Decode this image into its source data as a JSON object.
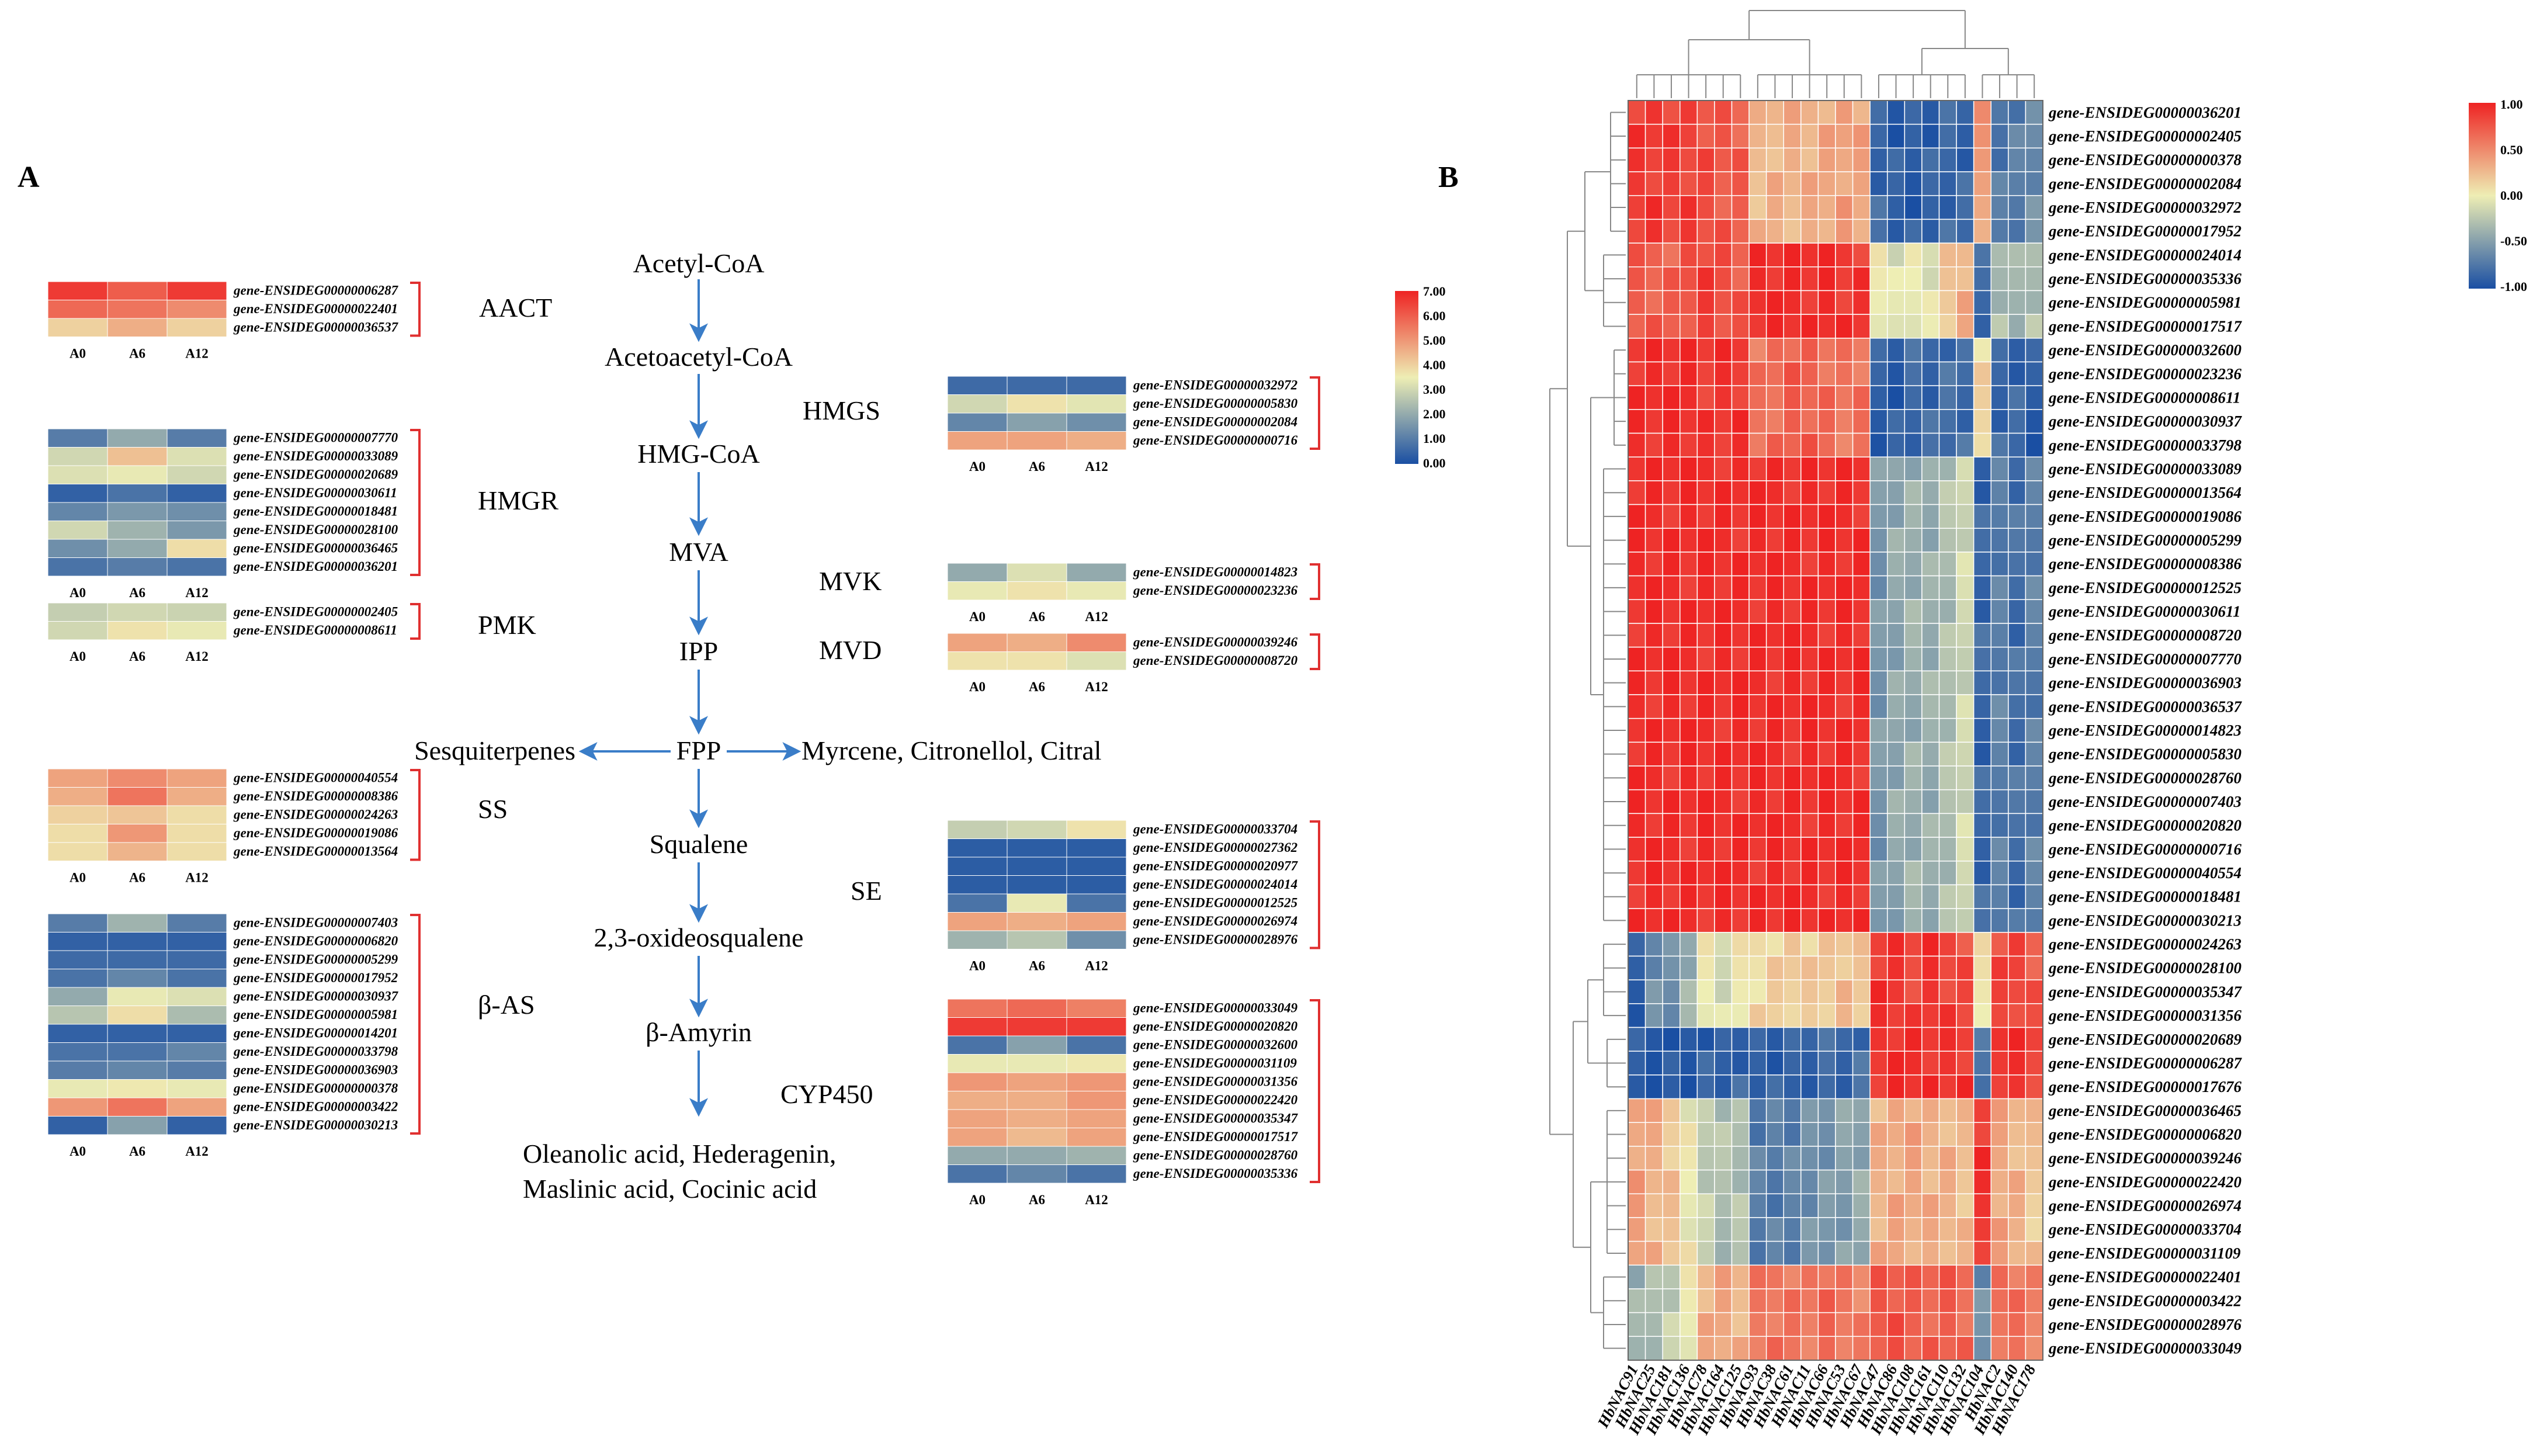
{
  "panels": {
    "a": "A",
    "b": "B"
  },
  "colors": {
    "low": "#1a4fa3",
    "mid": "#eeeeb4",
    "high": "#ee2323",
    "arrow": "#3a7dc8",
    "bracket": "#e03030"
  },
  "pathway": {
    "steps": [
      "Acetyl-CoA",
      "Acetoacetyl-CoA",
      "HMG-CoA",
      "MVA",
      "IPP",
      "FPP",
      "Squalene",
      "2,3-oxideosqualene",
      "β-Amyrin"
    ],
    "branch_left": "Sesquiterpenes",
    "branch_right": "Myrcene, Citronellol, Citral",
    "products_line1": "Oleanolic acid, Hederagenin,",
    "products_line2": "Maslinic acid, Cocinic acid"
  },
  "sample_labels": [
    "A0",
    "A6",
    "A12"
  ],
  "scale_a": {
    "max": "7.00",
    "ticks": [
      "7.00",
      "6.00",
      "5.00",
      "4.00",
      "3.00",
      "2.00",
      "1.00",
      "0.00"
    ]
  },
  "heatmaps": [
    {
      "enzyme": "AACT",
      "genes": [
        {
          "id": "gene-ENSIDEG00000006287",
          "values": [
            6.6,
            6.0,
            6.6
          ]
        },
        {
          "id": "gene-ENSIDEG00000022401",
          "values": [
            5.8,
            5.6,
            5.2
          ]
        },
        {
          "id": "gene-ENSIDEG00000036537",
          "values": [
            4.0,
            4.6,
            4.0
          ]
        }
      ]
    },
    {
      "enzyme": "HMGR",
      "genes": [
        {
          "id": "gene-ENSIDEG00000007770",
          "values": [
            1.0,
            2.0,
            1.0
          ]
        },
        {
          "id": "gene-ENSIDEG00000033089",
          "values": [
            3.0,
            4.3,
            3.2
          ]
        },
        {
          "id": "gene-ENSIDEG00000020689",
          "values": [
            3.2,
            3.4,
            3.0
          ]
        },
        {
          "id": "gene-ENSIDEG00000030611",
          "values": [
            0.4,
            0.8,
            0.4
          ]
        },
        {
          "id": "gene-ENSIDEG00000018481",
          "values": [
            1.2,
            1.6,
            1.4
          ]
        },
        {
          "id": "gene-ENSIDEG00000028100",
          "values": [
            3.0,
            2.2,
            1.6
          ]
        },
        {
          "id": "gene-ENSIDEG00000036465",
          "values": [
            1.4,
            2.0,
            3.8
          ]
        },
        {
          "id": "gene-ENSIDEG00000036201",
          "values": [
            0.8,
            1.0,
            0.8
          ]
        }
      ]
    },
    {
      "enzyme": "PMK",
      "genes": [
        {
          "id": "gene-ENSIDEG00000002405",
          "values": [
            2.8,
            3.0,
            2.9
          ]
        },
        {
          "id": "gene-ENSIDEG00000008611",
          "values": [
            3.0,
            3.7,
            3.4
          ]
        }
      ]
    },
    {
      "enzyme": "HMGS",
      "genes": [
        {
          "id": "gene-ENSIDEG00000032972",
          "values": [
            0.6,
            0.6,
            0.6
          ]
        },
        {
          "id": "gene-ENSIDEG00000005830",
          "values": [
            3.0,
            3.7,
            3.3
          ]
        },
        {
          "id": "gene-ENSIDEG00000002084",
          "values": [
            1.2,
            1.8,
            1.4
          ]
        },
        {
          "id": "gene-ENSIDEG00000000716",
          "values": [
            4.8,
            4.8,
            4.6
          ]
        }
      ]
    },
    {
      "enzyme": "MVK",
      "genes": [
        {
          "id": "gene-ENSIDEG00000014823",
          "values": [
            2.0,
            3.2,
            2.0
          ]
        },
        {
          "id": "gene-ENSIDEG00000023236",
          "values": [
            3.4,
            3.7,
            3.4
          ]
        }
      ]
    },
    {
      "enzyme": "MVD",
      "genes": [
        {
          "id": "gene-ENSIDEG00000039246",
          "values": [
            4.8,
            4.6,
            5.2
          ]
        },
        {
          "id": "gene-ENSIDEG00000008720",
          "values": [
            3.7,
            3.7,
            3.2
          ]
        }
      ]
    },
    {
      "enzyme": "SS",
      "genes": [
        {
          "id": "gene-ENSIDEG00000040554",
          "values": [
            4.8,
            5.2,
            4.8
          ]
        },
        {
          "id": "gene-ENSIDEG00000008386",
          "values": [
            4.6,
            5.6,
            4.6
          ]
        },
        {
          "id": "gene-ENSIDEG00000024263",
          "values": [
            4.0,
            4.2,
            3.8
          ]
        },
        {
          "id": "gene-ENSIDEG00000019086",
          "values": [
            3.8,
            5.0,
            3.8
          ]
        },
        {
          "id": "gene-ENSIDEG00000013564",
          "values": [
            3.8,
            4.5,
            3.8
          ]
        }
      ]
    },
    {
      "enzyme": "SE",
      "genes": [
        {
          "id": "gene-ENSIDEG00000033704",
          "values": [
            2.8,
            3.0,
            3.7
          ]
        },
        {
          "id": "gene-ENSIDEG00000027362",
          "values": [
            0.3,
            0.3,
            0.3
          ]
        },
        {
          "id": "gene-ENSIDEG00000020977",
          "values": [
            0.3,
            0.3,
            0.3
          ]
        },
        {
          "id": "gene-ENSIDEG00000024014",
          "values": [
            0.3,
            0.3,
            0.3
          ]
        },
        {
          "id": "gene-ENSIDEG00000012525",
          "values": [
            0.8,
            3.4,
            0.8
          ]
        },
        {
          "id": "gene-ENSIDEG00000026974",
          "values": [
            4.8,
            4.6,
            4.8
          ]
        },
        {
          "id": "gene-ENSIDEG00000028976",
          "values": [
            2.2,
            2.6,
            1.4
          ]
        }
      ]
    },
    {
      "enzyme": "β-AS",
      "genes": [
        {
          "id": "gene-ENSIDEG00000007403",
          "values": [
            1.0,
            2.2,
            1.0
          ]
        },
        {
          "id": "gene-ENSIDEG00000006820",
          "values": [
            0.4,
            0.4,
            0.4
          ]
        },
        {
          "id": "gene-ENSIDEG00000005299",
          "values": [
            0.6,
            0.6,
            0.6
          ]
        },
        {
          "id": "gene-ENSIDEG00000017952",
          "values": [
            0.8,
            1.2,
            0.8
          ]
        },
        {
          "id": "gene-ENSIDEG00000030937",
          "values": [
            2.0,
            3.4,
            3.2
          ]
        },
        {
          "id": "gene-ENSIDEG00000005981",
          "values": [
            2.6,
            3.8,
            2.4
          ]
        },
        {
          "id": "gene-ENSIDEG00000014201",
          "values": [
            0.4,
            0.4,
            0.4
          ]
        },
        {
          "id": "gene-ENSIDEG00000033798",
          "values": [
            0.8,
            0.8,
            1.2
          ]
        },
        {
          "id": "gene-ENSIDEG00000036903",
          "values": [
            1.0,
            1.2,
            1.0
          ]
        },
        {
          "id": "gene-ENSIDEG00000000378",
          "values": [
            3.4,
            3.6,
            3.4
          ]
        },
        {
          "id": "gene-ENSIDEG00000003422",
          "values": [
            5.0,
            5.6,
            4.8
          ]
        },
        {
          "id": "gene-ENSIDEG00000030213",
          "values": [
            0.4,
            1.8,
            0.4
          ]
        }
      ]
    },
    {
      "enzyme": "CYP450",
      "genes": [
        {
          "id": "gene-ENSIDEG00000033049",
          "values": [
            5.6,
            5.8,
            5.4
          ]
        },
        {
          "id": "gene-ENSIDEG00000020820",
          "values": [
            6.6,
            6.6,
            6.6
          ]
        },
        {
          "id": "gene-ENSIDEG00000032600",
          "values": [
            0.8,
            1.8,
            0.8
          ]
        },
        {
          "id": "gene-ENSIDEG00000031109",
          "values": [
            3.4,
            3.4,
            3.6
          ]
        },
        {
          "id": "gene-ENSIDEG00000031356",
          "values": [
            5.0,
            4.8,
            5.0
          ]
        },
        {
          "id": "gene-ENSIDEG00000022420",
          "values": [
            4.6,
            4.6,
            5.0
          ]
        },
        {
          "id": "gene-ENSIDEG00000035347",
          "values": [
            4.8,
            4.6,
            4.8
          ]
        },
        {
          "id": "gene-ENSIDEG00000017517",
          "values": [
            4.8,
            4.4,
            4.8
          ]
        },
        {
          "id": "gene-ENSIDEG00000028760",
          "values": [
            2.0,
            2.0,
            2.2
          ]
        },
        {
          "id": "gene-ENSIDEG00000035336",
          "values": [
            0.8,
            1.2,
            0.8
          ]
        }
      ]
    }
  ],
  "chart_data": {
    "type": "heatmap",
    "title": "",
    "scale": {
      "min": -1.0,
      "max": 1.0,
      "ticks": [
        "1.00",
        "0.50",
        "0.00",
        "-0.50",
        "-1.00"
      ]
    },
    "columns": [
      "HbNAC91",
      "HbNAC25",
      "HbNAC181",
      "HbNAC136",
      "HbNAC78",
      "HbNAC164",
      "HbNAC125",
      "HbNAC93",
      "HbNAC38",
      "HbNAC61",
      "HbNAC11",
      "HbNAC66",
      "HbNAC53",
      "HbNAC67",
      "HbNAC47",
      "HbNAC86",
      "HbNAC108",
      "HbNAC161",
      "HbNAC110",
      "HbNAC132",
      "HbNAC104",
      "HbNAC2",
      "HbNAC140",
      "HbNAC178"
    ],
    "rows": [
      "gene-ENSIDEG00000036201",
      "gene-ENSIDEG00000002405",
      "gene-ENSIDEG00000000378",
      "gene-ENSIDEG00000002084",
      "gene-ENSIDEG00000032972",
      "gene-ENSIDEG00000017952",
      "gene-ENSIDEG00000024014",
      "gene-ENSIDEG00000035336",
      "gene-ENSIDEG00000005981",
      "gene-ENSIDEG00000017517",
      "gene-ENSIDEG00000032600",
      "gene-ENSIDEG00000023236",
      "gene-ENSIDEG00000008611",
      "gene-ENSIDEG00000030937",
      "gene-ENSIDEG00000033798",
      "gene-ENSIDEG00000033089",
      "gene-ENSIDEG00000013564",
      "gene-ENSIDEG00000019086",
      "gene-ENSIDEG00000005299",
      "gene-ENSIDEG00000008386",
      "gene-ENSIDEG00000012525",
      "gene-ENSIDEG00000030611",
      "gene-ENSIDEG00000008720",
      "gene-ENSIDEG00000007770",
      "gene-ENSIDEG00000036903",
      "gene-ENSIDEG00000036537",
      "gene-ENSIDEG00000014823",
      "gene-ENSIDEG00000005830",
      "gene-ENSIDEG00000028760",
      "gene-ENSIDEG00000007403",
      "gene-ENSIDEG00000020820",
      "gene-ENSIDEG00000000716",
      "gene-ENSIDEG00000040554",
      "gene-ENSIDEG00000018481",
      "gene-ENSIDEG00000030213",
      "gene-ENSIDEG00000024263",
      "gene-ENSIDEG00000028100",
      "gene-ENSIDEG00000035347",
      "gene-ENSIDEG00000031356",
      "gene-ENSIDEG00000020689",
      "gene-ENSIDEG00000006287",
      "gene-ENSIDEG00000017676",
      "gene-ENSIDEG00000036465",
      "gene-ENSIDEG00000006820",
      "gene-ENSIDEG00000039246",
      "gene-ENSIDEG00000022420",
      "gene-ENSIDEG00000026974",
      "gene-ENSIDEG00000033704",
      "gene-ENSIDEG00000031109",
      "gene-ENSIDEG00000022401",
      "gene-ENSIDEG00000003422",
      "gene-ENSIDEG00000028976",
      "gene-ENSIDEG00000033049"
    ],
    "row_blocks": [
      {
        "rows": [
          0,
          5
        ],
        "pattern": [
          0.9,
          0.9,
          0.85,
          0.85,
          0.8,
          0.75,
          0.7,
          0.25,
          0.3,
          0.3,
          0.3,
          0.35,
          0.4,
          0.35,
          -0.85,
          -0.9,
          -0.9,
          -0.9,
          -0.85,
          -0.85,
          0.4,
          -0.75,
          -0.7,
          -0.6
        ]
      },
      {
        "rows": [
          6,
          9
        ],
        "pattern": [
          0.7,
          0.7,
          0.7,
          0.8,
          0.85,
          0.8,
          0.75,
          0.95,
          0.95,
          0.95,
          0.95,
          0.95,
          0.9,
          0.9,
          0.05,
          -0.1,
          0.0,
          -0.05,
          0.2,
          0.3,
          -0.85,
          -0.3,
          -0.4,
          -0.3
        ]
      },
      {
        "rows": [
          10,
          14
        ],
        "pattern": [
          0.95,
          0.95,
          0.95,
          0.95,
          0.9,
          0.9,
          0.9,
          0.6,
          0.65,
          0.7,
          0.7,
          0.65,
          0.6,
          0.6,
          -0.9,
          -0.9,
          -0.85,
          -0.85,
          -0.8,
          -0.8,
          0.1,
          -0.85,
          -0.85,
          -0.9
        ]
      },
      {
        "rows": [
          15,
          34
        ],
        "pattern": [
          0.95,
          0.95,
          0.95,
          0.95,
          0.95,
          0.95,
          0.95,
          0.95,
          0.95,
          0.95,
          0.95,
          0.95,
          0.95,
          0.95,
          -0.55,
          -0.45,
          -0.4,
          -0.4,
          -0.3,
          -0.15,
          -0.85,
          -0.7,
          -0.8,
          -0.7
        ]
      },
      {
        "rows": [
          35,
          38
        ],
        "pattern": [
          -0.9,
          -0.6,
          -0.6,
          -0.4,
          0.0,
          -0.1,
          0.0,
          0.1,
          0.15,
          0.2,
          0.15,
          0.2,
          0.25,
          0.2,
          0.9,
          0.9,
          0.85,
          0.9,
          0.85,
          0.8,
          0.1,
          0.8,
          0.85,
          0.75
        ]
      },
      {
        "rows": [
          39,
          41
        ],
        "pattern": [
          -0.95,
          -0.95,
          -0.95,
          -0.95,
          -0.9,
          -0.9,
          -0.85,
          -0.9,
          -0.9,
          -0.9,
          -0.85,
          -0.85,
          -0.85,
          -0.8,
          0.9,
          0.95,
          0.95,
          0.95,
          0.9,
          0.9,
          -0.8,
          0.95,
          0.9,
          0.85
        ]
      },
      {
        "rows": [
          42,
          48
        ],
        "pattern": [
          0.4,
          0.3,
          0.2,
          0.0,
          -0.2,
          -0.3,
          -0.3,
          -0.7,
          -0.7,
          -0.7,
          -0.6,
          -0.55,
          -0.5,
          -0.45,
          0.3,
          0.35,
          0.35,
          0.3,
          0.3,
          0.25,
          0.9,
          0.35,
          0.3,
          0.2
        ]
      },
      {
        "rows": [
          49,
          52
        ],
        "pattern": [
          -0.4,
          -0.3,
          -0.2,
          0.0,
          0.3,
          0.35,
          0.3,
          0.55,
          0.6,
          0.6,
          0.6,
          0.65,
          0.6,
          0.55,
          0.75,
          0.75,
          0.7,
          0.7,
          0.7,
          0.65,
          -0.6,
          0.65,
          0.6,
          0.55
        ]
      }
    ]
  }
}
